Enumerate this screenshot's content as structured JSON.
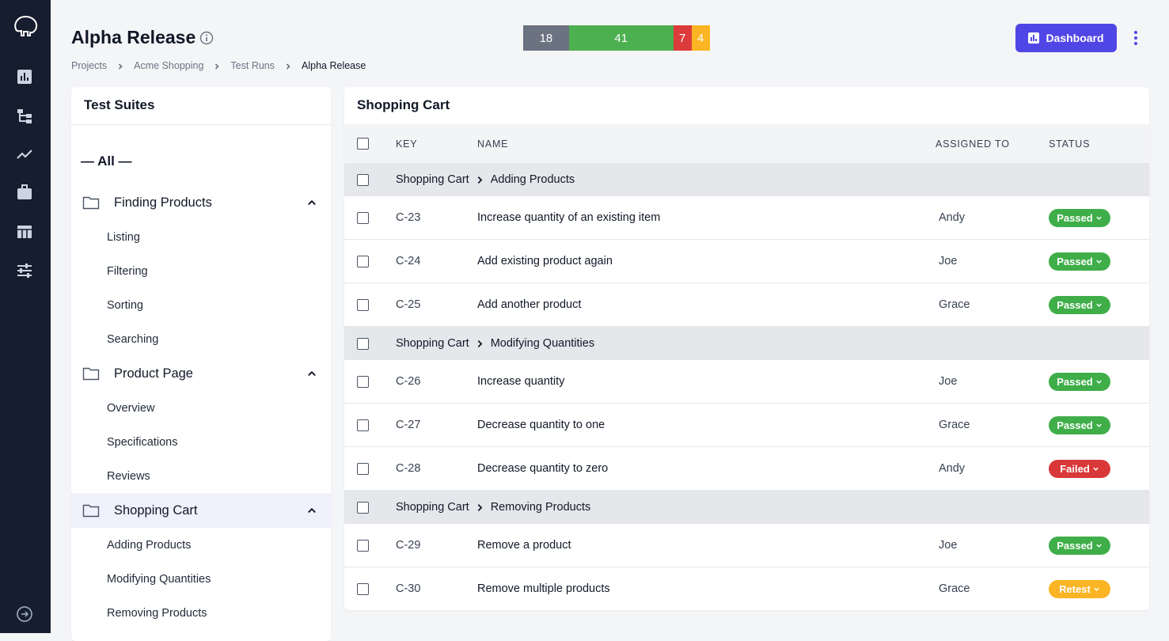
{
  "header": {
    "title": "Alpha Release",
    "stats": [
      {
        "value": 18,
        "color": "#6b7280"
      },
      {
        "value": 41,
        "color": "#4caf50"
      },
      {
        "value": 7,
        "color": "#dc3b3b"
      },
      {
        "value": 4,
        "color": "#fbb424"
      }
    ],
    "button": "Dashboard"
  },
  "breadcrumbs": [
    "Projects",
    "Acme Shopping",
    "Test Runs",
    "Alpha Release"
  ],
  "suites": {
    "title": "Test Suites",
    "all": "— All —",
    "folders": [
      {
        "name": "Finding Products",
        "children": [
          "Listing",
          "Filtering",
          "Sorting",
          "Searching"
        ]
      },
      {
        "name": "Product Page",
        "children": [
          "Overview",
          "Specifications",
          "Reviews"
        ]
      },
      {
        "name": "Shopping Cart",
        "children": [
          "Adding Products",
          "Modifying Quantities",
          "Removing Products"
        ]
      }
    ]
  },
  "table": {
    "title": "Shopping Cart",
    "columns": [
      "KEY",
      "NAME",
      "ASSIGNED TO",
      "STATUS"
    ],
    "groups": [
      {
        "parent": "Shopping Cart",
        "name": "Adding Products",
        "rows": [
          {
            "key": "C-23",
            "name": "Increase quantity of an existing item",
            "assignee": "Andy",
            "status": "Passed",
            "status_color": "#3fae49"
          },
          {
            "key": "C-24",
            "name": "Add existing product again",
            "assignee": "Joe",
            "status": "Passed",
            "status_color": "#3fae49"
          },
          {
            "key": "C-25",
            "name": "Add another product",
            "assignee": "Grace",
            "status": "Passed",
            "status_color": "#3fae49"
          }
        ]
      },
      {
        "parent": "Shopping Cart",
        "name": "Modifying Quantities",
        "rows": [
          {
            "key": "C-26",
            "name": "Increase quantity",
            "assignee": "Joe",
            "status": "Passed",
            "status_color": "#3fae49"
          },
          {
            "key": "C-27",
            "name": "Decrease quantity to one",
            "assignee": "Grace",
            "status": "Passed",
            "status_color": "#3fae49"
          },
          {
            "key": "C-28",
            "name": "Decrease quantity to zero",
            "assignee": "Andy",
            "status": "Failed",
            "status_color": "#d93838"
          }
        ]
      },
      {
        "parent": "Shopping Cart",
        "name": "Removing Products",
        "rows": [
          {
            "key": "C-29",
            "name": "Remove a product",
            "assignee": "Joe",
            "status": "Passed",
            "status_color": "#3fae49"
          },
          {
            "key": "C-30",
            "name": "Remove multiple products",
            "assignee": "Grace",
            "status": "Retest",
            "status_color": "#fbb424"
          }
        ]
      }
    ]
  }
}
